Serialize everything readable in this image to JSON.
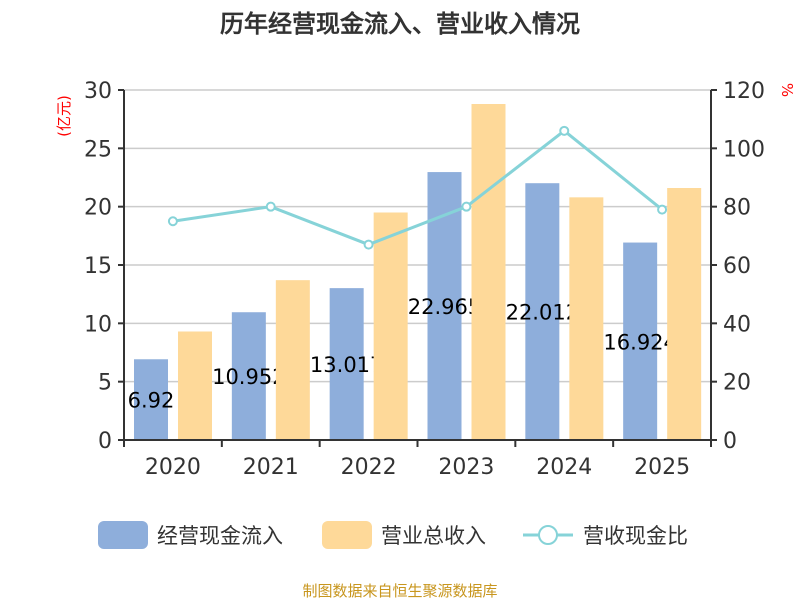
{
  "chart_data": {
    "type": "bar",
    "title": "历年经营现金流入、营业收入情况",
    "categories": [
      "2020",
      "2021",
      "2022",
      "2023",
      "2024",
      "2025"
    ],
    "y_left": {
      "unit_label": "(亿元)",
      "ylim": [
        0,
        30
      ],
      "ticks": [
        0,
        5,
        10,
        15,
        20,
        25,
        30
      ]
    },
    "y_right": {
      "unit_label": "%",
      "ylim": [
        0,
        120
      ],
      "ticks": [
        0,
        20,
        40,
        60,
        80,
        100,
        120
      ]
    },
    "grid": true,
    "legend_position": "bottom",
    "series": [
      {
        "name": "经营现金流入",
        "type": "bar",
        "axis": "left",
        "color": "#8eaedb",
        "values": [
          6.92,
          10.952,
          13.017,
          22.965,
          22.012,
          16.924
        ],
        "data_labels": [
          "6.92",
          "10.952",
          "13.017",
          "22.965",
          "22.012",
          "16.924"
        ]
      },
      {
        "name": "营业总收入",
        "type": "bar",
        "axis": "left",
        "color": "#fed999",
        "values": [
          9.3,
          13.7,
          19.5,
          28.8,
          20.8,
          21.6
        ]
      },
      {
        "name": "营收现金比",
        "type": "line",
        "axis": "right",
        "color": "#86d3d8",
        "values": [
          75,
          80,
          67,
          80,
          106,
          79
        ]
      }
    ],
    "footer": "制图数据来自恒生聚源数据库"
  }
}
